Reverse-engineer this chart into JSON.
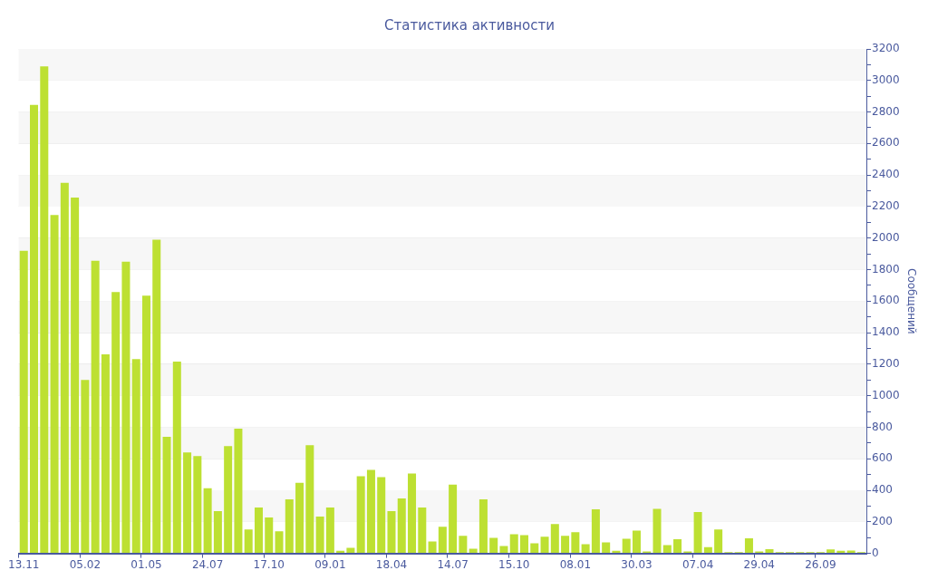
{
  "chart_data": {
    "type": "bar",
    "title": "Статистика активности",
    "ylabel": "Сообщений",
    "categories": [
      "13.11",
      null,
      null,
      null,
      null,
      null,
      "05.02",
      null,
      null,
      null,
      null,
      null,
      "01.05",
      null,
      null,
      null,
      null,
      null,
      "24.07",
      null,
      null,
      null,
      null,
      null,
      "17.10",
      null,
      null,
      null,
      null,
      null,
      "09.01",
      null,
      null,
      null,
      null,
      null,
      "18.04",
      null,
      null,
      null,
      null,
      null,
      "14.07",
      null,
      null,
      null,
      null,
      null,
      "15.10",
      null,
      null,
      null,
      null,
      null,
      "08.01",
      null,
      null,
      null,
      null,
      null,
      "30.03",
      null,
      null,
      null,
      null,
      null,
      "07.04",
      null,
      null,
      null,
      null,
      null,
      "29.04",
      null,
      null,
      null,
      null,
      null,
      "26.09",
      null,
      null,
      null,
      null
    ],
    "values": [
      1920,
      2845,
      3090,
      2147,
      2350,
      2257,
      1100,
      1856,
      1262,
      1658,
      1850,
      1233,
      1635,
      1990,
      739,
      1216,
      640,
      617,
      413,
      268,
      681,
      791,
      151,
      291,
      227,
      140,
      343,
      448,
      686,
      233,
      291,
      17,
      35,
      489,
      529,
      483,
      268,
      349,
      506,
      291,
      76,
      169,
      436,
      111,
      29,
      343,
      99,
      47,
      122,
      116,
      64,
      105,
      186,
      111,
      134,
      58,
      279,
      70,
      17,
      93,
      145,
      12,
      282,
      52,
      90,
      12,
      262,
      40,
      151,
      8,
      8,
      95,
      12,
      27,
      8,
      8,
      8,
      8,
      8,
      25,
      17,
      18,
      8
    ],
    "color": "#bde032",
    "ylim": [
      0,
      3200
    ],
    "yticks": [
      0,
      {
        "value": 100,
        "label": null
      },
      200,
      {
        "value": 300,
        "label": null
      },
      400,
      {
        "value": 500,
        "label": null
      },
      600,
      {
        "value": 700,
        "label": null
      },
      800,
      {
        "value": 900,
        "label": null
      },
      1000,
      {
        "value": 1100,
        "label": null
      },
      1200,
      {
        "value": 1300,
        "label": null
      },
      1400,
      {
        "value": 1500,
        "label": null
      },
      1600,
      {
        "value": 1700,
        "label": null
      },
      1800,
      {
        "value": 1900,
        "label": null
      },
      2000,
      {
        "value": 2100,
        "label": null
      },
      2200,
      {
        "value": 2300,
        "label": null
      },
      2400,
      {
        "value": 2500,
        "label": null
      },
      2600,
      {
        "value": 2700,
        "label": null
      },
      2800,
      {
        "value": 2900,
        "label": null
      },
      3000,
      {
        "value": 3100,
        "label": null
      },
      3200
    ],
    "grid": "y"
  }
}
